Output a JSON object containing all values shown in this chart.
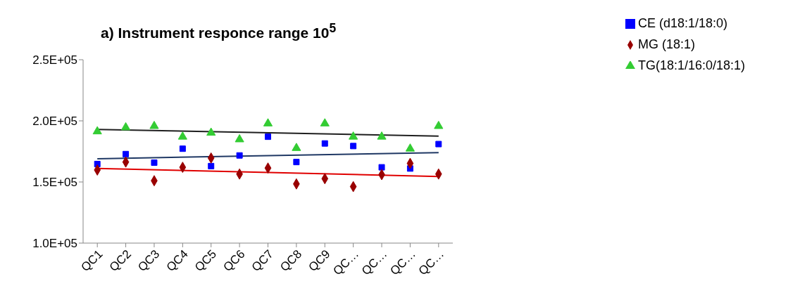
{
  "chart_data": {
    "type": "scatter",
    "title": "a) Instrument responce range 10$^{5}$",
    "categories": [
      "QC1",
      "QC2",
      "QC3",
      "QC4",
      "QC5",
      "QC6",
      "QC7",
      "QC8",
      "QC9",
      "QC…",
      "QC…",
      "QC…",
      "QC…"
    ],
    "series": [
      {
        "name": "CE (d18:1/18:0)",
        "color": "#0000ff",
        "marker": "square",
        "values": [
          164700,
          172800,
          165800,
          177200,
          163000,
          171700,
          187000,
          166300,
          181500,
          179400,
          162000,
          161000,
          181000
        ]
      },
      {
        "name": "MG (18:1)",
        "color": "#990000",
        "marker": "diamond",
        "values": [
          159800,
          166300,
          151000,
          162000,
          169600,
          156500,
          161400,
          148400,
          152700,
          146200,
          156000,
          165200,
          156500
        ]
      },
      {
        "name": "TG(18:1/16:0/18:1)",
        "color": "#33cc33",
        "marker": "triangle",
        "values": [
          191300,
          194600,
          195700,
          187000,
          190200,
          184800,
          197800,
          177700,
          197800,
          187000,
          187000,
          177200,
          195700
        ]
      },
      {
        "type": "line",
        "color": "#1f1f1f",
        "marker": "none",
        "values": [
          193000,
          null,
          null,
          null,
          null,
          null,
          null,
          null,
          null,
          null,
          null,
          null,
          187500
        ]
      },
      {
        "type": "line",
        "color": "#1f3864",
        "marker": "none",
        "values": [
          169000,
          null,
          null,
          null,
          null,
          null,
          null,
          null,
          null,
          null,
          null,
          null,
          174000
        ]
      },
      {
        "type": "line",
        "color": "#e00000",
        "marker": "none",
        "values": [
          161000,
          null,
          null,
          null,
          null,
          null,
          null,
          null,
          null,
          null,
          null,
          null,
          154500
        ]
      }
    ],
    "ylim": [
      100000,
      250000
    ],
    "yticks": [
      {
        "value": 100000,
        "label": "1.0E+05"
      },
      {
        "value": 150000,
        "label": "1.5E+05"
      },
      {
        "value": 200000,
        "label": "2.0E+05"
      },
      {
        "value": 250000,
        "label": "2.5E+05"
      }
    ],
    "grid": false,
    "legend": "top right"
  }
}
